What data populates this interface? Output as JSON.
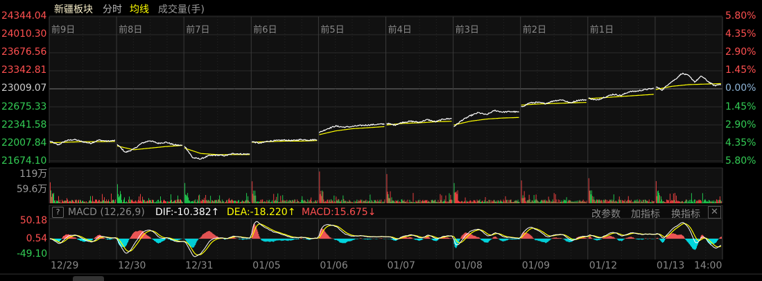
{
  "header": {
    "tabs": [
      {
        "label": "新疆板块",
        "color": "#f2e9c4"
      },
      {
        "label": "分时",
        "color": "#b8b8b8"
      },
      {
        "label": "均线",
        "color": "#ffff00"
      },
      {
        "label": "成交量(手)",
        "color": "#9a9a9a"
      }
    ]
  },
  "colors": {
    "up": "#ff5050",
    "down": "#33cc55",
    "neutral": "#cccccc",
    "price_line": "#ffffff",
    "avg_line": "#ffff00",
    "macd_up": "#ff5b5b",
    "macd_down": "#00e5ee"
  },
  "price_axis": {
    "left": [
      "24344.04",
      "24010.30",
      "23676.56",
      "23342.81",
      "23009.07",
      "22675.33",
      "22341.58",
      "22007.84",
      "21674.10"
    ],
    "right": [
      "5.80%",
      "4.35%",
      "2.90%",
      "1.45%",
      "0.00%",
      "1.45%",
      "2.90%",
      "4.35%",
      "5.80%"
    ]
  },
  "day_labels": [
    "前9日",
    "前8日",
    "前7日",
    "前6日",
    "前5日",
    "前4日",
    "前3日",
    "前2日",
    "前1日"
  ],
  "volume_axis": [
    "119万",
    "59.6万"
  ],
  "macd": {
    "help": "?",
    "name": "MACD (12,26,9)",
    "dif": "DIF:-10.382↑",
    "dea": "DEA:-18.220↑",
    "macd": "MACD:15.675↓",
    "axis": [
      "50.18",
      "0.54",
      "-49.10"
    ],
    "buttons": [
      "改参数",
      "加指标",
      "换指标"
    ],
    "close": "✕"
  },
  "date_labels": [
    "12/29",
    "12/30",
    "12/31",
    "01/05",
    "01/06",
    "01/07",
    "01/08",
    "01/09",
    "01/12",
    "01/13",
    "14:00"
  ],
  "chart_data": {
    "type": "line",
    "ylim": [
      21674.1,
      24344.04
    ],
    "prev_close": 23009.07,
    "volume_max": "119万",
    "days": [
      {
        "date": "12/29",
        "price": [
          22030,
          21960,
          22040,
          22060,
          22020,
          21990,
          22050,
          22030,
          22040
        ],
        "avg": [
          22000,
          22010,
          22020,
          22020,
          22025
        ]
      },
      {
        "date": "12/30",
        "price": [
          21970,
          21820,
          21880,
          21990,
          22040,
          21990,
          22010,
          21960,
          21950
        ],
        "avg": [
          21940,
          21870,
          21900,
          21930,
          21950
        ]
      },
      {
        "date": "12/31",
        "price": [
          21940,
          21720,
          21700,
          21760,
          21770,
          21760,
          21800,
          21790,
          21790
        ],
        "avg": [
          21900,
          21800,
          21780,
          21780,
          21780
        ]
      },
      {
        "date": "01/05",
        "price": [
          22020,
          21990,
          22030,
          22040,
          22050,
          22040,
          22060,
          22050,
          22060
        ],
        "avg": [
          22010,
          22020,
          22030,
          22030,
          22040
        ]
      },
      {
        "date": "01/06",
        "price": [
          22190,
          22260,
          22310,
          22290,
          22300,
          22320,
          22330,
          22340,
          22350
        ],
        "avg": [
          22150,
          22220,
          22260,
          22280,
          22300
        ]
      },
      {
        "date": "01/07",
        "price": [
          22360,
          22330,
          22380,
          22400,
          22380,
          22430,
          22390,
          22440,
          22450
        ],
        "avg": [
          22330,
          22360,
          22370,
          22390,
          22400
        ]
      },
      {
        "date": "01/08",
        "price": [
          22300,
          22420,
          22500,
          22560,
          22520,
          22600,
          22570,
          22580,
          22570
        ],
        "avg": [
          22330,
          22400,
          22440,
          22460,
          22470
        ]
      },
      {
        "date": "01/09",
        "price": [
          22660,
          22740,
          22750,
          22730,
          22780,
          22800,
          22740,
          22790,
          22800
        ],
        "avg": [
          22700,
          22720,
          22730,
          22740,
          22750
        ]
      },
      {
        "date": "01/12",
        "price": [
          22830,
          22790,
          22850,
          22900,
          22880,
          22950,
          22960,
          22990,
          23010
        ],
        "avg": [
          22820,
          22840,
          22860,
          22880,
          22900
        ]
      },
      {
        "date": "01/13",
        "price": [
          23040,
          22980,
          23100,
          23180,
          23290,
          23250,
          23130,
          23240,
          23140,
          23060,
          23090
        ],
        "avg": [
          22990,
          23050,
          23080,
          23090,
          23100
        ]
      }
    ],
    "macd_range": [
      -49.1,
      50.18
    ]
  }
}
